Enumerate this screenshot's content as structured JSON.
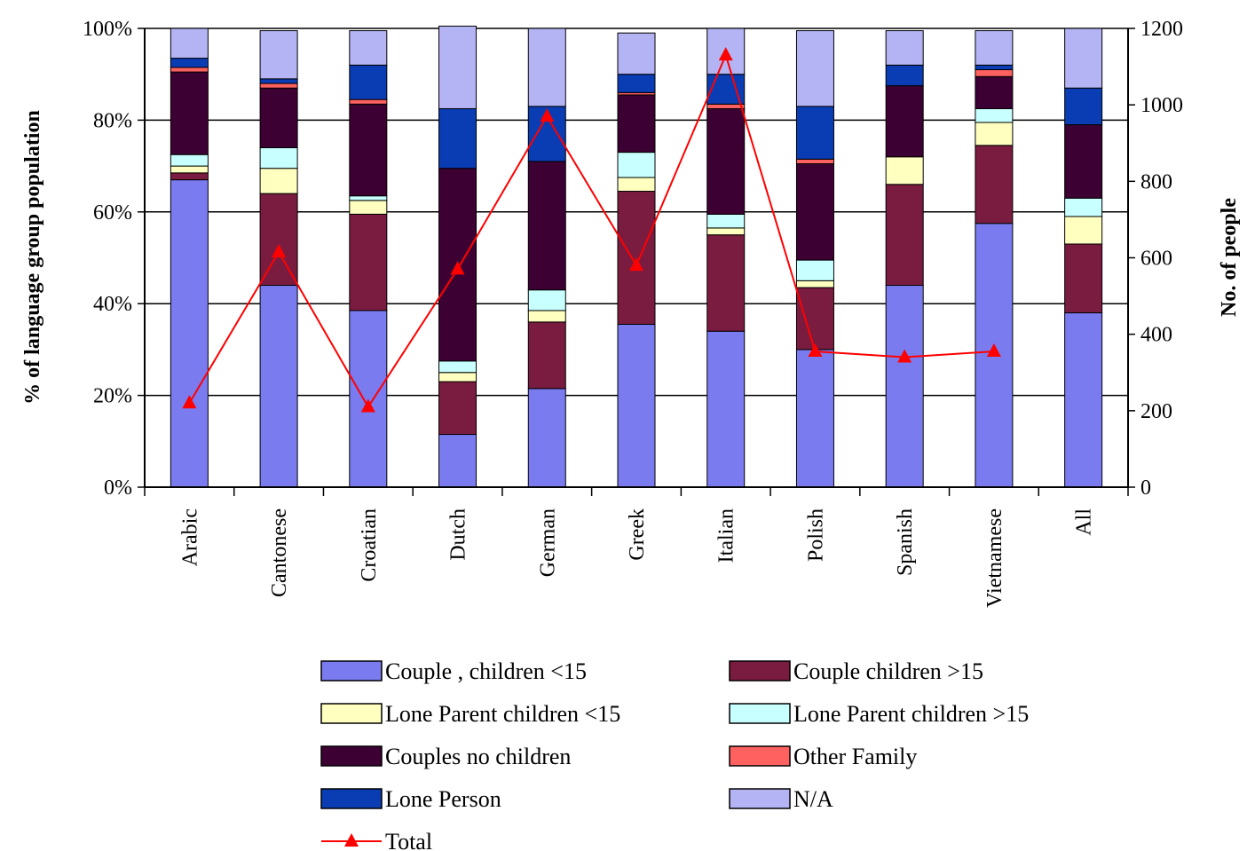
{
  "chart_data": {
    "type": "bar",
    "stacked": true,
    "percent_stacked": true,
    "categories": [
      "Arabic",
      "Cantonese",
      "Croatian",
      "Dutch",
      "German",
      "Greek",
      "Italian",
      "Polish",
      "Spanish",
      "Vietnamese",
      "All"
    ],
    "series": [
      {
        "name": "Couple , children <15",
        "color": "#7b7bf0",
        "values": [
          67,
          44,
          38.5,
          11.5,
          21.5,
          35.5,
          34,
          30,
          44,
          57.5,
          38
        ]
      },
      {
        "name": "Couple children >15",
        "color": "#7a1c40",
        "values": [
          1.5,
          20,
          21,
          11.5,
          14.5,
          29,
          21,
          13.5,
          22,
          17,
          15
        ]
      },
      {
        "name": "Lone Parent children <15",
        "color": "#ffffc0",
        "values": [
          1.5,
          5.5,
          3,
          2,
          2.5,
          3,
          1.5,
          1.5,
          6,
          5,
          6
        ]
      },
      {
        "name": "Lone Parent children >15",
        "color": "#c8ffff",
        "values": [
          2.5,
          4.5,
          1,
          2.5,
          4.5,
          5.5,
          3,
          4.5,
          0,
          3,
          4
        ]
      },
      {
        "name": "Couples no children",
        "color": "#3d0033",
        "values": [
          18,
          13,
          20,
          42,
          28,
          12.5,
          23,
          21,
          15.5,
          7,
          16
        ]
      },
      {
        "name": "Other Family",
        "color": "#ff6060",
        "values": [
          1,
          1,
          1,
          0,
          0,
          0.5,
          1,
          1,
          0,
          1.5,
          0
        ]
      },
      {
        "name": "Lone Person",
        "color": "#0a3cb4",
        "values": [
          2,
          1,
          7.5,
          13,
          12,
          4,
          6.5,
          11.5,
          4.5,
          1,
          8
        ]
      },
      {
        "name": "N/A",
        "color": "#b4b4f5",
        "values": [
          6.5,
          10.5,
          7.5,
          18,
          17,
          9,
          10,
          16.5,
          7.5,
          7.5,
          13
        ]
      }
    ],
    "line_series": {
      "name": "Total",
      "color": "#ff0000",
      "marker": "triangle",
      "values": [
        220,
        615,
        210,
        570,
        970,
        580,
        1130,
        355,
        340,
        355,
        null
      ]
    },
    "ylabel": "% of language group population",
    "y2label": "No. of people",
    "ylim": [
      0,
      100
    ],
    "y2lim": [
      0,
      1200
    ],
    "yticks": [
      "0%",
      "20%",
      "40%",
      "60%",
      "80%",
      "100%"
    ],
    "y2ticks": [
      "0",
      "200",
      "400",
      "600",
      "800",
      "1000",
      "1200"
    ],
    "grid": true,
    "legend_position": "bottom"
  }
}
